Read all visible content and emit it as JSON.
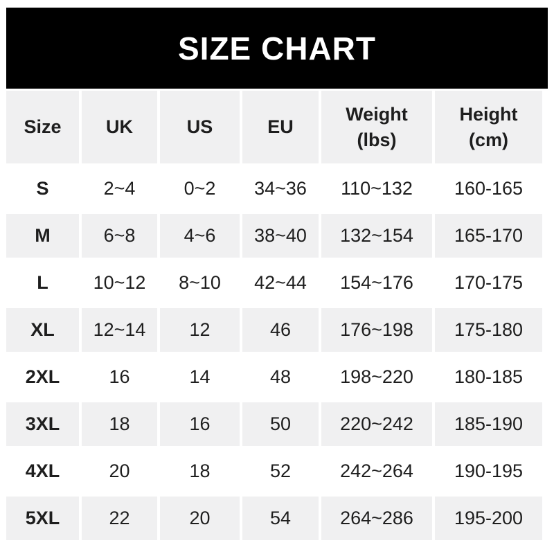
{
  "title": "SIZE CHART",
  "colors": {
    "title_bar_bg": "#000000",
    "title_bar_text": "#ffffff",
    "shaded_row_bg": "#f0f0f1",
    "text": "#1e1e1e",
    "page_bg": "#ffffff"
  },
  "chart_data": {
    "type": "table",
    "title": "SIZE CHART",
    "columns": [
      "Size",
      "UK",
      "US",
      "EU",
      "Weight\n(lbs)",
      "Height\n(cm)"
    ],
    "rows": [
      [
        "S",
        "2~4",
        "0~2",
        "34~36",
        "110~132",
        "160-165"
      ],
      [
        "M",
        "6~8",
        "4~6",
        "38~40",
        "132~154",
        "165-170"
      ],
      [
        "L",
        "10~12",
        "8~10",
        "42~44",
        "154~176",
        "170-175"
      ],
      [
        "XL",
        "12~14",
        "12",
        "46",
        "176~198",
        "175-180"
      ],
      [
        "2XL",
        "16",
        "14",
        "48",
        "198~220",
        "180-185"
      ],
      [
        "3XL",
        "18",
        "16",
        "50",
        "220~242",
        "185-190"
      ],
      [
        "4XL",
        "20",
        "18",
        "52",
        "242~264",
        "190-195"
      ],
      [
        "5XL",
        "22",
        "20",
        "54",
        "264~286",
        "195-200"
      ]
    ],
    "layout": {
      "shaded_rows": [
        "header",
        "M",
        "XL",
        "3XL",
        "5XL"
      ],
      "grid": "off",
      "alignment": "center"
    }
  }
}
